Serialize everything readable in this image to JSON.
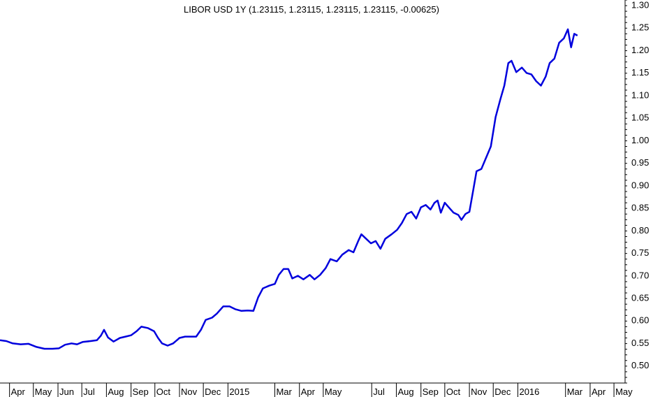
{
  "chart_data": {
    "type": "line",
    "title": "LIBOR USD 1Y (1.23115, 1.23115, 1.23115, 1.23115, -0.00625)",
    "xlabel": "",
    "ylabel": "",
    "ylim": [
      0.46,
      1.31
    ],
    "xlim": [
      "2014-03-20",
      "2016-05-15"
    ],
    "grid": false,
    "legend": "none",
    "line_color": "#0000dd",
    "yticks": [
      0.5,
      0.55,
      0.6,
      0.65,
      0.7,
      0.75,
      0.8,
      0.85,
      0.9,
      0.95,
      1.0,
      1.05,
      1.1,
      1.15,
      1.2,
      1.25,
      1.3
    ],
    "ytick_labels": [
      "0.50",
      "0.55",
      "0.60",
      "0.65",
      "0.70",
      "0.75",
      "0.80",
      "0.85",
      "0.90",
      "0.95",
      "1.00",
      "1.05",
      "1.10",
      "1.15",
      "1.20",
      "1.25",
      "1.30"
    ],
    "xticks": [
      {
        "label": "Apr",
        "date": "2014-04-01"
      },
      {
        "label": "May",
        "date": "2014-05-01"
      },
      {
        "label": "Jun",
        "date": "2014-06-01"
      },
      {
        "label": "Jul",
        "date": "2014-07-01"
      },
      {
        "label": "Aug",
        "date": "2014-08-01"
      },
      {
        "label": "Sep",
        "date": "2014-09-01"
      },
      {
        "label": "Oct",
        "date": "2014-10-01"
      },
      {
        "label": "Nov",
        "date": "2014-11-01"
      },
      {
        "label": "Dec",
        "date": "2014-12-01"
      },
      {
        "label": "2015",
        "date": "2015-01-01"
      },
      {
        "label": "Mar",
        "date": "2015-03-01"
      },
      {
        "label": "Apr",
        "date": "2015-04-01"
      },
      {
        "label": "May",
        "date": "2015-05-01"
      },
      {
        "label": "Jul",
        "date": "2015-07-01"
      },
      {
        "label": "Aug",
        "date": "2015-08-01"
      },
      {
        "label": "Sep",
        "date": "2015-09-01"
      },
      {
        "label": "Oct",
        "date": "2015-10-01"
      },
      {
        "label": "Nov",
        "date": "2015-11-01"
      },
      {
        "label": "Dec",
        "date": "2015-12-01"
      },
      {
        "label": "2016",
        "date": "2016-01-01"
      },
      {
        "label": "Mar",
        "date": "2016-03-01"
      },
      {
        "label": "Apr",
        "date": "2016-04-01"
      },
      {
        "label": "May",
        "date": "2016-05-01"
      }
    ],
    "series": [
      {
        "name": "",
        "points": [
          [
            "2014-03-20",
            0.555
          ],
          [
            "2014-03-28",
            0.553
          ],
          [
            "2014-04-05",
            0.548
          ],
          [
            "2014-04-15",
            0.546
          ],
          [
            "2014-04-25",
            0.547
          ],
          [
            "2014-05-05",
            0.54
          ],
          [
            "2014-05-15",
            0.536
          ],
          [
            "2014-05-25",
            0.536
          ],
          [
            "2014-06-02",
            0.537
          ],
          [
            "2014-06-10",
            0.545
          ],
          [
            "2014-06-18",
            0.548
          ],
          [
            "2014-06-25",
            0.546
          ],
          [
            "2014-07-02",
            0.551
          ],
          [
            "2014-07-12",
            0.553
          ],
          [
            "2014-07-20",
            0.555
          ],
          [
            "2014-07-25",
            0.565
          ],
          [
            "2014-07-29",
            0.578
          ],
          [
            "2014-08-03",
            0.561
          ],
          [
            "2014-08-10",
            0.552
          ],
          [
            "2014-08-18",
            0.56
          ],
          [
            "2014-08-25",
            0.563
          ],
          [
            "2014-09-01",
            0.566
          ],
          [
            "2014-09-08",
            0.575
          ],
          [
            "2014-09-14",
            0.585
          ],
          [
            "2014-09-22",
            0.582
          ],
          [
            "2014-09-30",
            0.575
          ],
          [
            "2014-10-05",
            0.56
          ],
          [
            "2014-10-10",
            0.548
          ],
          [
            "2014-10-17",
            0.543
          ],
          [
            "2014-10-24",
            0.548
          ],
          [
            "2014-11-01",
            0.56
          ],
          [
            "2014-11-08",
            0.563
          ],
          [
            "2014-11-15",
            0.563
          ],
          [
            "2014-11-22",
            0.563
          ],
          [
            "2014-11-28",
            0.578
          ],
          [
            "2014-12-04",
            0.6
          ],
          [
            "2014-12-12",
            0.605
          ],
          [
            "2014-12-18",
            0.614
          ],
          [
            "2014-12-26",
            0.63
          ],
          [
            "2015-01-03",
            0.63
          ],
          [
            "2015-01-10",
            0.624
          ],
          [
            "2015-01-18",
            0.62
          ],
          [
            "2015-01-26",
            0.621
          ],
          [
            "2015-02-02",
            0.62
          ],
          [
            "2015-02-08",
            0.65
          ],
          [
            "2015-02-14",
            0.67
          ],
          [
            "2015-02-22",
            0.676
          ],
          [
            "2015-03-01",
            0.68
          ],
          [
            "2015-03-06",
            0.7
          ],
          [
            "2015-03-12",
            0.713
          ],
          [
            "2015-03-18",
            0.713
          ],
          [
            "2015-03-23",
            0.692
          ],
          [
            "2015-03-30",
            0.698
          ],
          [
            "2015-04-06",
            0.69
          ],
          [
            "2015-04-14",
            0.7
          ],
          [
            "2015-04-20",
            0.69
          ],
          [
            "2015-04-27",
            0.7
          ],
          [
            "2015-05-04",
            0.715
          ],
          [
            "2015-05-10",
            0.735
          ],
          [
            "2015-05-18",
            0.73
          ],
          [
            "2015-05-25",
            0.745
          ],
          [
            "2015-06-02",
            0.755
          ],
          [
            "2015-06-08",
            0.75
          ],
          [
            "2015-06-14",
            0.775
          ],
          [
            "2015-06-18",
            0.79
          ],
          [
            "2015-06-24",
            0.78
          ],
          [
            "2015-06-30",
            0.77
          ],
          [
            "2015-07-06",
            0.775
          ],
          [
            "2015-07-12",
            0.758
          ],
          [
            "2015-07-18",
            0.78
          ],
          [
            "2015-07-26",
            0.79
          ],
          [
            "2015-08-02",
            0.8
          ],
          [
            "2015-08-08",
            0.815
          ],
          [
            "2015-08-14",
            0.835
          ],
          [
            "2015-08-20",
            0.84
          ],
          [
            "2015-08-26",
            0.825
          ],
          [
            "2015-09-01",
            0.85
          ],
          [
            "2015-09-07",
            0.855
          ],
          [
            "2015-09-13",
            0.845
          ],
          [
            "2015-09-18",
            0.86
          ],
          [
            "2015-09-22",
            0.865
          ],
          [
            "2015-09-26",
            0.838
          ],
          [
            "2015-10-01",
            0.86
          ],
          [
            "2015-10-06",
            0.85
          ],
          [
            "2015-10-12",
            0.838
          ],
          [
            "2015-10-18",
            0.833
          ],
          [
            "2015-10-22",
            0.822
          ],
          [
            "2015-10-27",
            0.835
          ],
          [
            "2015-11-01",
            0.84
          ],
          [
            "2015-11-06",
            0.89
          ],
          [
            "2015-11-10",
            0.93
          ],
          [
            "2015-11-16",
            0.935
          ],
          [
            "2015-11-22",
            0.96
          ],
          [
            "2015-11-28",
            0.985
          ],
          [
            "2015-12-04",
            1.05
          ],
          [
            "2015-12-10",
            1.09
          ],
          [
            "2015-12-15",
            1.12
          ],
          [
            "2015-12-20",
            1.17
          ],
          [
            "2015-12-24",
            1.175
          ],
          [
            "2015-12-30",
            1.15
          ],
          [
            "2016-01-06",
            1.16
          ],
          [
            "2016-01-12",
            1.148
          ],
          [
            "2016-01-18",
            1.145
          ],
          [
            "2016-01-24",
            1.13
          ],
          [
            "2016-01-30",
            1.12
          ],
          [
            "2016-02-05",
            1.14
          ],
          [
            "2016-02-10",
            1.17
          ],
          [
            "2016-02-16",
            1.18
          ],
          [
            "2016-02-22",
            1.215
          ],
          [
            "2016-02-28",
            1.225
          ],
          [
            "2016-03-04",
            1.245
          ],
          [
            "2016-03-08",
            1.205
          ],
          [
            "2016-03-12",
            1.235
          ],
          [
            "2016-03-16",
            1.231
          ]
        ]
      }
    ]
  }
}
